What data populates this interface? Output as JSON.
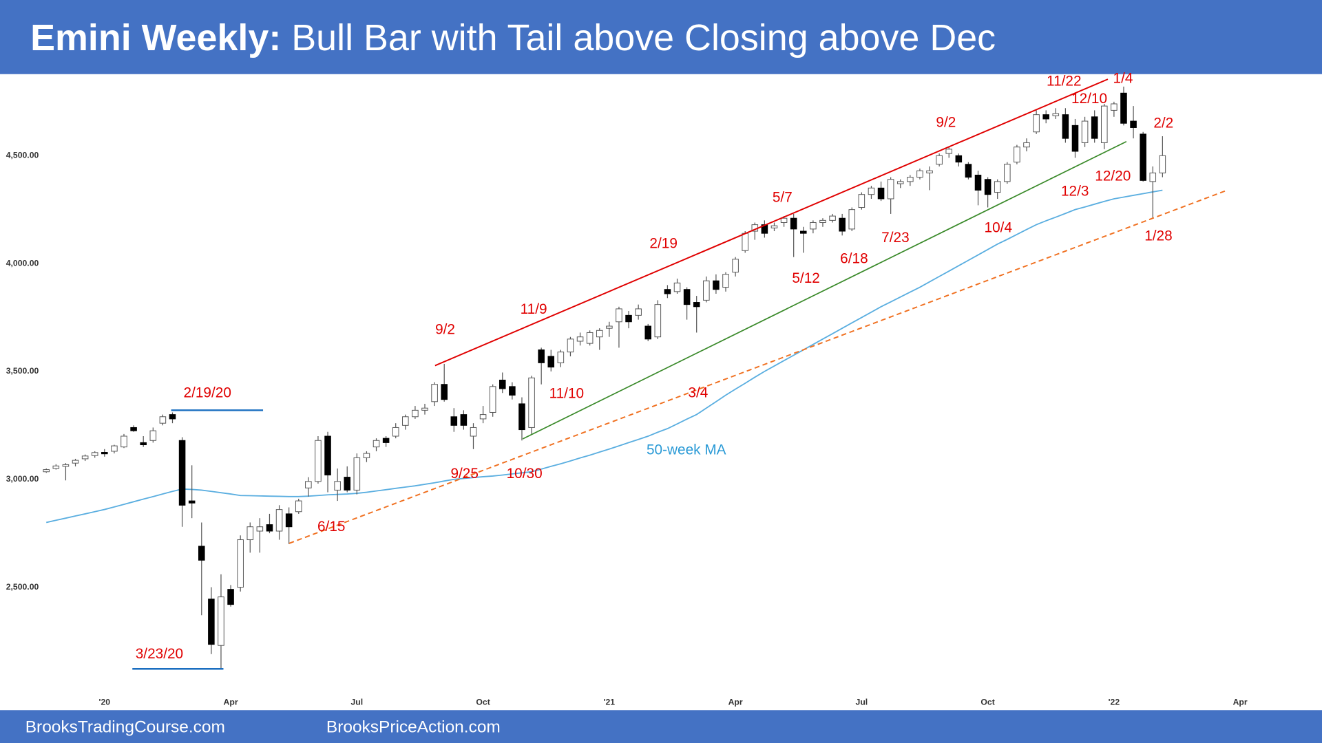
{
  "chart_data": {
    "type": "candlestick",
    "title_bold": "Emini Weekly:",
    "title": "Bull Bar with Tail above Closing above Dec",
    "footer_left": "BrooksTradingCourse.com",
    "footer_right": "BrooksPriceAction.com",
    "x": [
      -6,
      -5,
      -4,
      -3,
      -2,
      -1,
      0,
      1,
      2,
      3,
      4,
      5,
      6,
      7,
      8,
      9,
      10,
      11,
      12,
      13,
      14,
      15,
      16,
      17,
      18,
      19,
      20,
      21,
      22,
      23,
      24,
      25,
      26,
      27,
      28,
      29,
      30,
      31,
      32,
      33,
      34,
      35,
      36,
      37,
      38,
      39,
      40,
      41,
      42,
      43,
      44,
      45,
      46,
      47,
      48,
      49,
      50,
      51,
      52,
      53,
      54,
      55,
      56,
      57,
      58,
      59,
      60,
      61,
      62,
      63,
      64,
      65,
      66,
      67,
      68,
      69,
      70,
      71,
      72,
      73,
      74,
      75,
      76,
      77,
      78,
      79,
      80,
      81,
      82,
      83,
      84,
      85,
      86,
      87,
      88,
      89,
      90,
      91,
      92,
      93,
      94,
      95,
      96,
      97,
      98,
      99,
      100,
      101,
      102,
      103,
      104,
      105,
      106,
      107,
      108,
      109
    ],
    "open": [
      3035,
      3050,
      3060,
      3075,
      3095,
      3110,
      3125,
      3130,
      3150,
      3240,
      3170,
      3180,
      3260,
      3300,
      3180,
      2900,
      2690,
      2445,
      2230,
      2490,
      2500,
      2720,
      2760,
      2790,
      2760,
      2840,
      2850,
      2960,
      2990,
      3200,
      2950,
      3010,
      2950,
      3100,
      3150,
      3190,
      3200,
      3250,
      3290,
      3320,
      3360,
      3440,
      3290,
      3300,
      3200,
      3280,
      3310,
      3460,
      3430,
      3350,
      3240,
      3600,
      3570,
      3540,
      3590,
      3640,
      3630,
      3660,
      3700,
      3730,
      3760,
      3760,
      3710,
      3660,
      3880,
      3870,
      3880,
      3820,
      3830,
      3920,
      3890,
      3960,
      4060,
      4150,
      4180,
      4165,
      4190,
      4210,
      4150,
      4160,
      4190,
      4200,
      4210,
      4160,
      4260,
      4320,
      4350,
      4300,
      4370,
      4380,
      4400,
      4420,
      4460,
      4510,
      4500,
      4460,
      4410,
      4390,
      4330,
      4380,
      4470,
      4540,
      4610,
      4690,
      4685,
      4690,
      4640,
      4560,
      4680,
      4560,
      4710,
      4790,
      4660,
      4600,
      4380,
      4420
    ],
    "high": [
      3050,
      3070,
      3075,
      3095,
      3115,
      3130,
      3140,
      3160,
      3210,
      3250,
      3200,
      3240,
      3300,
      3310,
      3195,
      3065,
      2800,
      2500,
      2560,
      2510,
      2740,
      2800,
      2820,
      2840,
      2880,
      2870,
      2910,
      3010,
      3200,
      3220,
      3050,
      3060,
      3120,
      3130,
      3190,
      3200,
      3260,
      3300,
      3340,
      3350,
      3450,
      3535,
      3330,
      3320,
      3260,
      3340,
      3440,
      3495,
      3450,
      3380,
      3480,
      3610,
      3600,
      3600,
      3660,
      3680,
      3690,
      3700,
      3730,
      3800,
      3780,
      3810,
      3720,
      3830,
      3900,
      3930,
      3890,
      3850,
      3940,
      3950,
      3960,
      4030,
      4150,
      4190,
      4200,
      4190,
      4220,
      4230,
      4170,
      4200,
      4210,
      4230,
      4230,
      4260,
      4330,
      4360,
      4380,
      4400,
      4390,
      4410,
      4440,
      4450,
      4510,
      4540,
      4510,
      4470,
      4430,
      4400,
      4390,
      4470,
      4550,
      4580,
      4710,
      4710,
      4720,
      4720,
      4670,
      4680,
      4710,
      4740,
      4750,
      4820,
      4730,
      4610,
      4450,
      4590
    ],
    "low": [
      3030,
      3045,
      2995,
      3060,
      3085,
      3100,
      3105,
      3120,
      3145,
      3220,
      3150,
      3170,
      3250,
      3260,
      2780,
      2820,
      2370,
      2190,
      2125,
      2410,
      2480,
      2660,
      2660,
      2750,
      2720,
      2700,
      2840,
      2920,
      2980,
      2940,
      2900,
      2940,
      2930,
      3080,
      3130,
      3150,
      3190,
      3230,
      3280,
      3300,
      3340,
      3360,
      3220,
      3230,
      3140,
      3260,
      3290,
      3400,
      3370,
      3180,
      3210,
      3440,
      3500,
      3520,
      3570,
      3620,
      3620,
      3600,
      3660,
      3610,
      3700,
      3740,
      3640,
      3650,
      3840,
      3860,
      3740,
      3680,
      3820,
      3860,
      3870,
      3940,
      4050,
      4110,
      4120,
      4150,
      4170,
      4030,
      4050,
      4140,
      4170,
      4190,
      4130,
      4150,
      4250,
      4300,
      4290,
      4230,
      4350,
      4360,
      4390,
      4340,
      4450,
      4490,
      4450,
      4390,
      4270,
      4260,
      4300,
      4370,
      4460,
      4520,
      4600,
      4650,
      4670,
      4560,
      4490,
      4540,
      4560,
      4530,
      4680,
      4640,
      4580,
      4380,
      4210,
      4400
    ],
    "close": [
      3045,
      3062,
      3068,
      3088,
      3108,
      3124,
      3118,
      3155,
      3200,
      3225,
      3160,
      3225,
      3290,
      3280,
      2880,
      2890,
      2625,
      2235,
      2455,
      2420,
      2720,
      2780,
      2780,
      2760,
      2860,
      2780,
      2900,
      2990,
      3180,
      3020,
      2990,
      2950,
      3100,
      3120,
      3180,
      3170,
      3240,
      3290,
      3320,
      3330,
      3440,
      3370,
      3250,
      3250,
      3240,
      3300,
      3430,
      3420,
      3390,
      3230,
      3470,
      3540,
      3520,
      3590,
      3650,
      3660,
      3680,
      3690,
      3710,
      3790,
      3730,
      3790,
      3650,
      3810,
      3860,
      3910,
      3810,
      3800,
      3920,
      3880,
      3950,
      4020,
      4140,
      4180,
      4140,
      4175,
      4210,
      4160,
      4140,
      4190,
      4200,
      4220,
      4150,
      4250,
      4320,
      4350,
      4300,
      4390,
      4380,
      4400,
      4430,
      4430,
      4500,
      4530,
      4470,
      4400,
      4340,
      4320,
      4380,
      4460,
      4540,
      4560,
      4690,
      4670,
      4695,
      4580,
      4520,
      4660,
      4580,
      4730,
      4740,
      4650,
      4630,
      4385,
      4420,
      4500
    ],
    "up_color": "#ffffff",
    "down_color": "#000000",
    "wick_color": "#555555",
    "ma": {
      "name": "50-week MA",
      "color": "#5aaee0",
      "values": [
        2800,
        2810,
        2820,
        2830,
        2840,
        2850,
        2860,
        2872,
        2884,
        2896,
        2908,
        2920,
        2932,
        2944,
        2955,
        2953,
        2950,
        2944,
        2938,
        2932,
        2925,
        2924,
        2923,
        2922,
        2921,
        2920,
        2920,
        2922,
        2925,
        2928,
        2930,
        2932,
        2935,
        2940,
        2946,
        2952,
        2958,
        2964,
        2970,
        2977,
        2984,
        2992,
        3000,
        3004,
        3008,
        3012,
        3015,
        3020,
        3025,
        3030,
        3035,
        3047,
        3060,
        3072,
        3085,
        3099,
        3112,
        3126,
        3140,
        3155,
        3170,
        3185,
        3200,
        3218,
        3235,
        3257,
        3279,
        3300,
        3330,
        3360,
        3390,
        3418,
        3445,
        3473,
        3500,
        3525,
        3550,
        3575,
        3600,
        3625,
        3650,
        3675,
        3700,
        3725,
        3750,
        3775,
        3800,
        3822,
        3845,
        3868,
        3890,
        3915,
        3940,
        3965,
        3990,
        4015,
        4040,
        4065,
        4090,
        4112,
        4135,
        4158,
        4180,
        4198,
        4215,
        4232,
        4250,
        4262,
        4275,
        4288,
        4300,
        4308,
        4316,
        4324,
        4332,
        4340
      ]
    },
    "xlim": [
      -6.6,
      123
    ],
    "ylim": [
      2020,
      4870
    ],
    "xticks": [
      {
        "value": 0,
        "label": "'20"
      },
      {
        "value": 13,
        "label": "Apr"
      },
      {
        "value": 26,
        "label": "Jul"
      },
      {
        "value": 39,
        "label": "Oct"
      },
      {
        "value": 52,
        "label": "'21"
      },
      {
        "value": 65,
        "label": "Apr"
      },
      {
        "value": 78,
        "label": "Jul"
      },
      {
        "value": 91,
        "label": "Oct"
      },
      {
        "value": 104,
        "label": "'22"
      },
      {
        "value": 117,
        "label": "Apr"
      }
    ],
    "yticks": [
      {
        "value": 2500,
        "label": "2,500.00"
      },
      {
        "value": 3000,
        "label": "3,000.00"
      },
      {
        "value": 3500,
        "label": "3,500.00"
      },
      {
        "value": 4000,
        "label": "4,000.00"
      },
      {
        "value": 4500,
        "label": "4,500.00"
      }
    ],
    "annotations": [
      "2/19/20",
      "3/23/20",
      "6/15",
      "9/25",
      "10/30",
      "9/2",
      "11/10",
      "11/9",
      "2/19",
      "3/4",
      "5/7",
      "5/12",
      "6/18",
      "7/23",
      "9/2",
      "10/4",
      "11/22",
      "1/4",
      "12/10",
      "2/2",
      "12/20",
      "12/3",
      "1/28"
    ]
  }
}
